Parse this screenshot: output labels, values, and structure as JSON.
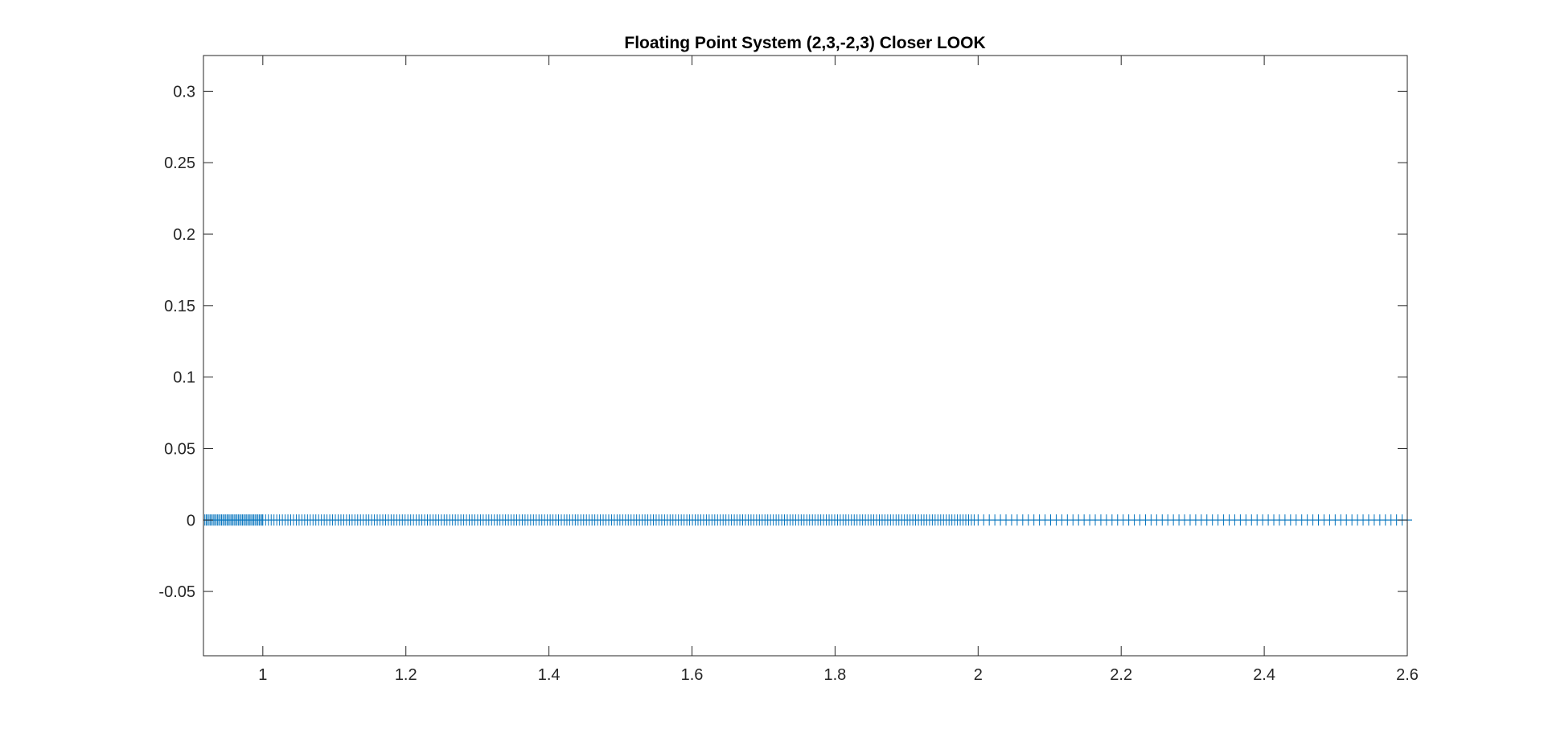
{
  "chart_data": {
    "type": "scatter",
    "title": "Floating Point System (2,3,-2,3) Closer LOOK",
    "xlabel": "",
    "ylabel": "",
    "xlim": [
      0.917,
      2.6
    ],
    "ylim": [
      -0.095,
      0.325
    ],
    "x_ticks": [
      1,
      1.2,
      1.4,
      1.6,
      1.8,
      2,
      2.2,
      2.4,
      2.6
    ],
    "x_tick_labels": [
      "1",
      "1.2",
      "1.4",
      "1.6",
      "1.8",
      "2",
      "2.2",
      "2.4",
      "2.6"
    ],
    "y_ticks": [
      -0.05,
      0,
      0.05,
      0.1,
      0.15,
      0.2,
      0.25,
      0.3
    ],
    "y_tick_labels": [
      "-0.05",
      "0",
      "0.05",
      "0.1",
      "0.15",
      "0.2",
      "0.25",
      "0.3"
    ],
    "grid": false,
    "box": true,
    "marker": "+",
    "series": [
      {
        "color": "#0072BD",
        "segments": [
          {
            "x_start": 0.917,
            "x_end": 1.0,
            "spacing": 0.00195,
            "y": 0
          },
          {
            "x_start": 1.0,
            "x_end": 2.0,
            "spacing": 0.0039,
            "y": 0
          },
          {
            "x_start": 2.0,
            "x_end": 2.6,
            "spacing": 0.0078,
            "y": 0
          }
        ]
      }
    ]
  }
}
